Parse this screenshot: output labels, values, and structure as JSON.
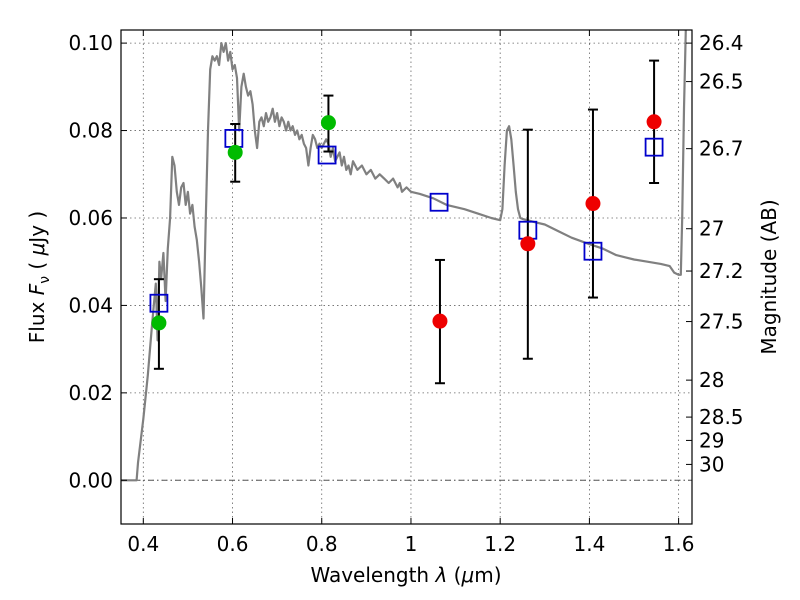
{
  "chart_data": {
    "type": "scatter",
    "title": "",
    "xlabel": "Wavelength  λ (μm)",
    "ylabel": "Flux  F_ν  ( μJy )",
    "ylabel_parts": {
      "prefix": "Flux  ",
      "symbol": "F",
      "subscript": "ν",
      "mid": "  ( ",
      "unit_symbol": "μ",
      "unit": "Jy )"
    },
    "xlabel_parts": {
      "prefix": "Wavelength  ",
      "symbol": "λ",
      "mid": " (",
      "unit_symbol": "μ",
      "unit": "m)"
    },
    "y2label": "Magnitude (AB)",
    "xlim": [
      0.35,
      1.63
    ],
    "ylim": [
      -0.01,
      0.103
    ],
    "grid": true,
    "x_ticks": [
      {
        "value": 0.4,
        "label": "0.4"
      },
      {
        "value": 0.6,
        "label": "0.6"
      },
      {
        "value": 0.8,
        "label": "0.8"
      },
      {
        "value": 1.0,
        "label": "1"
      },
      {
        "value": 1.2,
        "label": "1.2"
      },
      {
        "value": 1.4,
        "label": "1.4"
      },
      {
        "value": 1.6,
        "label": "1.6"
      }
    ],
    "y_ticks": [
      {
        "value": 0.0,
        "label": "0.00"
      },
      {
        "value": 0.02,
        "label": "0.02"
      },
      {
        "value": 0.04,
        "label": "0.04"
      },
      {
        "value": 0.06,
        "label": "0.06"
      },
      {
        "value": 0.08,
        "label": "0.08"
      },
      {
        "value": 0.1,
        "label": "0.10"
      }
    ],
    "mag_ticks": [
      {
        "mag": 26.4,
        "label": "26.4"
      },
      {
        "mag": 26.5,
        "label": "26.5"
      },
      {
        "mag": 26.7,
        "label": "26.7"
      },
      {
        "mag": 27.0,
        "label": "27"
      },
      {
        "mag": 27.2,
        "label": "27.2"
      },
      {
        "mag": 27.5,
        "label": "27.5"
      },
      {
        "mag": 28.0,
        "label": "28"
      },
      {
        "mag": 28.5,
        "label": "28.5"
      },
      {
        "mag": 29.0,
        "label": "29"
      },
      {
        "mag": 30.0,
        "label": "30"
      }
    ],
    "series": [
      {
        "style": "line",
        "color": "#808080",
        "points": [
          [
            0.35,
            0.0
          ],
          [
            0.385,
            0.0
          ],
          [
            0.388,
            0.004
          ],
          [
            0.4,
            0.014
          ],
          [
            0.41,
            0.024
          ],
          [
            0.42,
            0.036
          ],
          [
            0.428,
            0.045
          ],
          [
            0.432,
            0.032
          ],
          [
            0.436,
            0.05
          ],
          [
            0.44,
            0.046
          ],
          [
            0.445,
            0.052
          ],
          [
            0.45,
            0.041
          ],
          [
            0.455,
            0.053
          ],
          [
            0.46,
            0.06
          ],
          [
            0.465,
            0.074
          ],
          [
            0.47,
            0.072
          ],
          [
            0.475,
            0.066
          ],
          [
            0.48,
            0.063
          ],
          [
            0.485,
            0.067
          ],
          [
            0.49,
            0.068
          ],
          [
            0.495,
            0.063
          ],
          [
            0.5,
            0.066
          ],
          [
            0.505,
            0.061
          ],
          [
            0.51,
            0.063
          ],
          [
            0.515,
            0.058
          ],
          [
            0.52,
            0.055
          ],
          [
            0.525,
            0.05
          ],
          [
            0.53,
            0.044
          ],
          [
            0.535,
            0.037
          ],
          [
            0.54,
            0.06
          ],
          [
            0.545,
            0.08
          ],
          [
            0.55,
            0.094
          ],
          [
            0.555,
            0.097
          ],
          [
            0.56,
            0.096
          ],
          [
            0.565,
            0.097
          ],
          [
            0.57,
            0.095
          ],
          [
            0.575,
            0.1
          ],
          [
            0.58,
            0.098
          ],
          [
            0.585,
            0.1
          ],
          [
            0.59,
            0.096
          ],
          [
            0.595,
            0.098
          ],
          [
            0.6,
            0.094
          ],
          [
            0.605,
            0.095
          ],
          [
            0.61,
            0.092
          ],
          [
            0.615,
            0.08
          ],
          [
            0.62,
            0.09
          ],
          [
            0.625,
            0.093
          ],
          [
            0.63,
            0.09
          ],
          [
            0.635,
            0.088
          ],
          [
            0.64,
            0.089
          ],
          [
            0.645,
            0.086
          ],
          [
            0.65,
            0.08
          ],
          [
            0.655,
            0.076
          ],
          [
            0.66,
            0.082
          ],
          [
            0.665,
            0.083
          ],
          [
            0.67,
            0.081
          ],
          [
            0.675,
            0.084
          ],
          [
            0.68,
            0.082
          ],
          [
            0.685,
            0.083
          ],
          [
            0.69,
            0.085
          ],
          [
            0.695,
            0.082
          ],
          [
            0.7,
            0.084
          ],
          [
            0.705,
            0.081
          ],
          [
            0.71,
            0.083
          ],
          [
            0.715,
            0.082
          ],
          [
            0.72,
            0.08
          ],
          [
            0.725,
            0.082
          ],
          [
            0.73,
            0.08
          ],
          [
            0.735,
            0.081
          ],
          [
            0.74,
            0.079
          ],
          [
            0.745,
            0.08
          ],
          [
            0.75,
            0.078
          ],
          [
            0.755,
            0.079
          ],
          [
            0.76,
            0.077
          ],
          [
            0.765,
            0.076
          ],
          [
            0.77,
            0.072
          ],
          [
            0.775,
            0.076
          ],
          [
            0.78,
            0.079
          ],
          [
            0.785,
            0.078
          ],
          [
            0.79,
            0.076
          ],
          [
            0.795,
            0.077
          ],
          [
            0.8,
            0.076
          ],
          [
            0.81,
            0.078
          ],
          [
            0.815,
            0.077
          ],
          [
            0.82,
            0.074
          ],
          [
            0.825,
            0.076
          ],
          [
            0.83,
            0.073
          ],
          [
            0.84,
            0.075
          ],
          [
            0.845,
            0.072
          ],
          [
            0.85,
            0.074
          ],
          [
            0.855,
            0.071
          ],
          [
            0.86,
            0.072
          ],
          [
            0.865,
            0.07
          ],
          [
            0.87,
            0.073
          ],
          [
            0.88,
            0.071
          ],
          [
            0.89,
            0.072
          ],
          [
            0.9,
            0.07
          ],
          [
            0.91,
            0.071
          ],
          [
            0.92,
            0.069
          ],
          [
            0.93,
            0.07
          ],
          [
            0.94,
            0.069
          ],
          [
            0.95,
            0.068
          ],
          [
            0.96,
            0.069
          ],
          [
            0.97,
            0.067
          ],
          [
            0.975,
            0.068
          ],
          [
            0.98,
            0.066
          ],
          [
            0.99,
            0.067
          ],
          [
            1.0,
            0.066
          ],
          [
            1.02,
            0.0655
          ],
          [
            1.05,
            0.0645
          ],
          [
            1.08,
            0.063
          ],
          [
            1.1,
            0.0625
          ],
          [
            1.12,
            0.062
          ],
          [
            1.15,
            0.061
          ],
          [
            1.18,
            0.06
          ],
          [
            1.2,
            0.0595
          ],
          [
            1.205,
            0.062
          ],
          [
            1.21,
            0.072
          ],
          [
            1.215,
            0.08
          ],
          [
            1.22,
            0.081
          ],
          [
            1.225,
            0.078
          ],
          [
            1.23,
            0.072
          ],
          [
            1.235,
            0.066
          ],
          [
            1.24,
            0.062
          ],
          [
            1.245,
            0.06
          ],
          [
            1.25,
            0.0598
          ],
          [
            1.28,
            0.059
          ],
          [
            1.3,
            0.0585
          ],
          [
            1.33,
            0.057
          ],
          [
            1.36,
            0.0555
          ],
          [
            1.4,
            0.054
          ],
          [
            1.43,
            0.053
          ],
          [
            1.46,
            0.0515
          ],
          [
            1.48,
            0.051
          ],
          [
            1.5,
            0.0505
          ],
          [
            1.53,
            0.05
          ],
          [
            1.56,
            0.0495
          ],
          [
            1.58,
            0.049
          ],
          [
            1.59,
            0.0475
          ],
          [
            1.6,
            0.047
          ],
          [
            1.605,
            0.047
          ],
          [
            1.608,
            0.06
          ],
          [
            1.612,
            0.085
          ],
          [
            1.616,
            0.103
          ]
        ]
      },
      {
        "style": "open-square",
        "color": "#0000cc",
        "points": [
          [
            0.435,
            0.0405
          ],
          [
            0.603,
            0.0782
          ],
          [
            0.812,
            0.0744
          ],
          [
            1.063,
            0.0636
          ],
          [
            1.262,
            0.0572
          ],
          [
            1.408,
            0.0524
          ],
          [
            1.545,
            0.0762
          ]
        ]
      },
      {
        "style": "filled-circle",
        "color": "#00bb00",
        "points": [
          {
            "x": 0.435,
            "y": 0.036,
            "yerr_lo": 0.0255,
            "yerr_hi": 0.046
          },
          {
            "x": 0.606,
            "y": 0.075,
            "yerr_lo": 0.0683,
            "yerr_hi": 0.0815
          },
          {
            "x": 0.815,
            "y": 0.0818,
            "yerr_lo": 0.0752,
            "yerr_hi": 0.088
          }
        ]
      },
      {
        "style": "filled-circle",
        "color": "#ee0000",
        "points": [
          {
            "x": 1.065,
            "y": 0.0364,
            "yerr_lo": 0.0222,
            "yerr_hi": 0.0504
          },
          {
            "x": 1.262,
            "y": 0.0541,
            "yerr_lo": 0.0278,
            "yerr_hi": 0.0802
          },
          {
            "x": 1.408,
            "y": 0.0633,
            "yerr_lo": 0.0418,
            "yerr_hi": 0.0848
          },
          {
            "x": 1.545,
            "y": 0.082,
            "yerr_lo": 0.068,
            "yerr_hi": 0.096
          }
        ]
      }
    ]
  }
}
